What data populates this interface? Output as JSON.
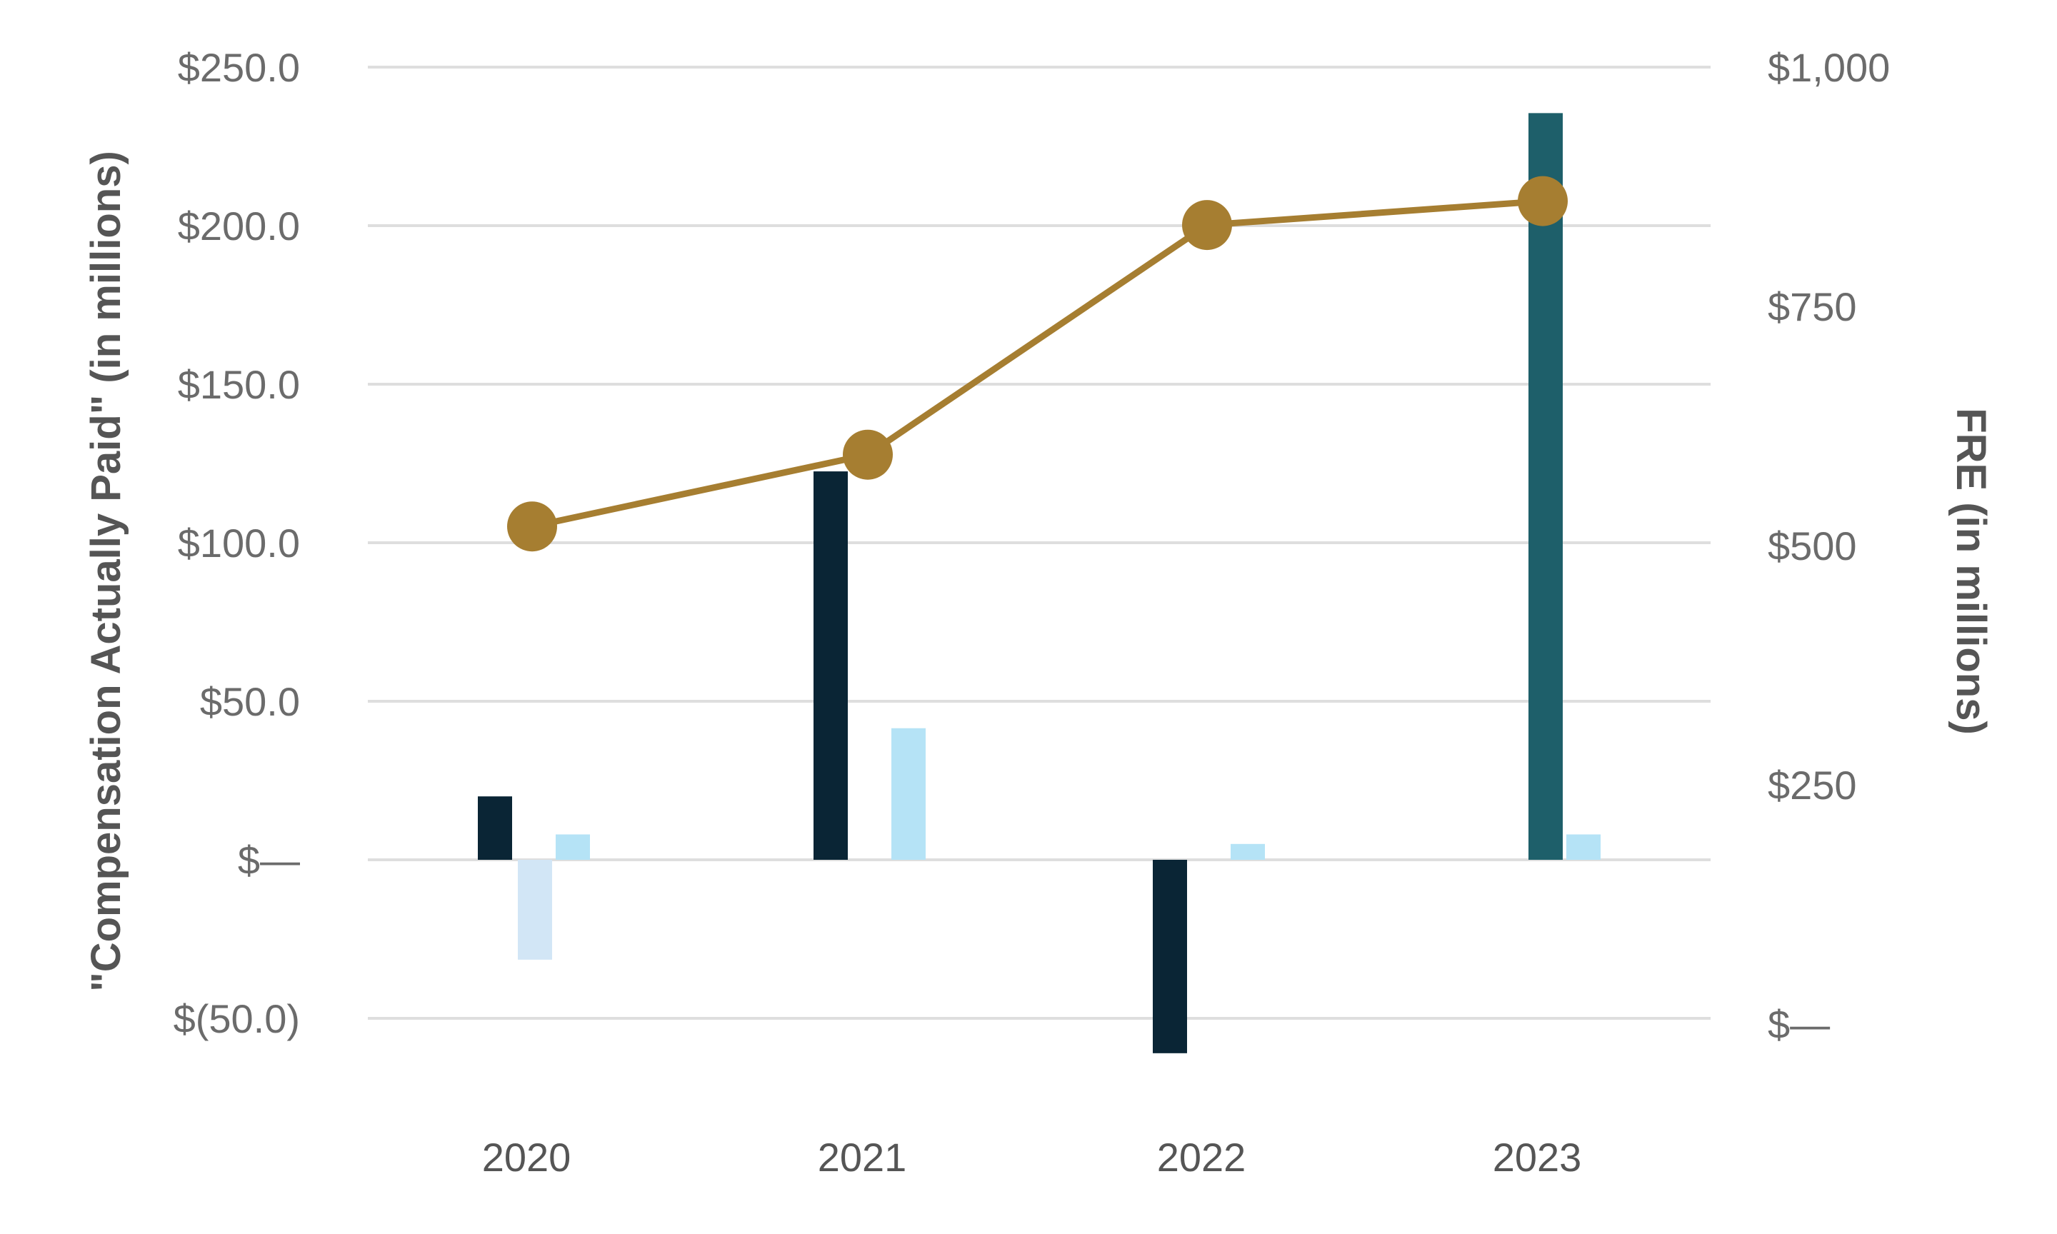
{
  "chart_data": {
    "type": "bar",
    "title": "",
    "categories": [
      "2020",
      "2021",
      "2022",
      "2023"
    ],
    "ylabel_left": "\"Compensation Actually Paid\" (in millions)",
    "ylabel_right": "FRE  (in millions)",
    "ylim_left": [
      -60,
      250
    ],
    "ylim_right": [
      0,
      1000
    ],
    "left_ticks": [
      {
        "value": 250,
        "label": "$250.0"
      },
      {
        "value": 200,
        "label": "$200.0"
      },
      {
        "value": 150,
        "label": "$150.0"
      },
      {
        "value": 100,
        "label": "$100.0"
      },
      {
        "value": 50,
        "label": "$50.0"
      },
      {
        "value": 0,
        "label": "$—"
      },
      {
        "value": -50,
        "label": "$(50.0)"
      }
    ],
    "right_ticks": [
      {
        "value": 1000,
        "label": "$1,000"
      },
      {
        "value": 750,
        "label": "$750"
      },
      {
        "value": 500,
        "label": "$500"
      },
      {
        "value": 250,
        "label": "$250"
      },
      {
        "value": 0,
        "label": "$—"
      }
    ],
    "bar_series": [
      {
        "values": [
          20,
          122.5,
          -61,
          null
        ],
        "color": "#0a2535"
      },
      {
        "values": [
          -31.5,
          null,
          null,
          235.5
        ],
        "colors": [
          "#d2e6f6",
          null,
          null,
          "#1e5f6a"
        ]
      },
      {
        "values": [
          8,
          41.5,
          5,
          8
        ],
        "color": "#b5e3f6"
      }
    ],
    "line_series": {
      "axis": "right",
      "values": [
        520,
        595,
        835,
        860
      ],
      "color": "#a67e31"
    },
    "grid": true,
    "legend": "none"
  }
}
